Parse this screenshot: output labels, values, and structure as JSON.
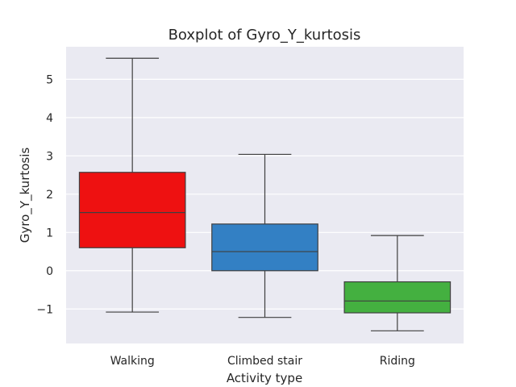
{
  "chart_data": {
    "type": "boxplot",
    "title": "Boxplot of Gyro_Y_kurtosis",
    "xlabel": "Activity type",
    "ylabel": "Gyro_Y_kurtosis",
    "ylim": [
      -1.9,
      5.85
    ],
    "yticks": [
      -1,
      0,
      1,
      2,
      3,
      4,
      5
    ],
    "ytick_labels": [
      "−1",
      "0",
      "1",
      "2",
      "3",
      "4",
      "5"
    ],
    "grid": true,
    "background": "#eaeaf2",
    "categories": [
      "Walking",
      "Climbed stair",
      "Riding"
    ],
    "boxes": [
      {
        "label": "Walking",
        "whislo": -1.08,
        "q1": 0.6,
        "med": 1.52,
        "q3": 2.57,
        "whishi": 5.55,
        "color": "#ee1111"
      },
      {
        "label": "Climbed stair",
        "whislo": -1.22,
        "q1": 0.0,
        "med": 0.5,
        "q3": 1.22,
        "whishi": 3.04,
        "color": "#3380c4"
      },
      {
        "label": "Riding",
        "whislo": -1.57,
        "q1": -1.1,
        "med": -0.79,
        "q3": -0.29,
        "whishi": 0.92,
        "color": "#44b040"
      }
    ]
  }
}
